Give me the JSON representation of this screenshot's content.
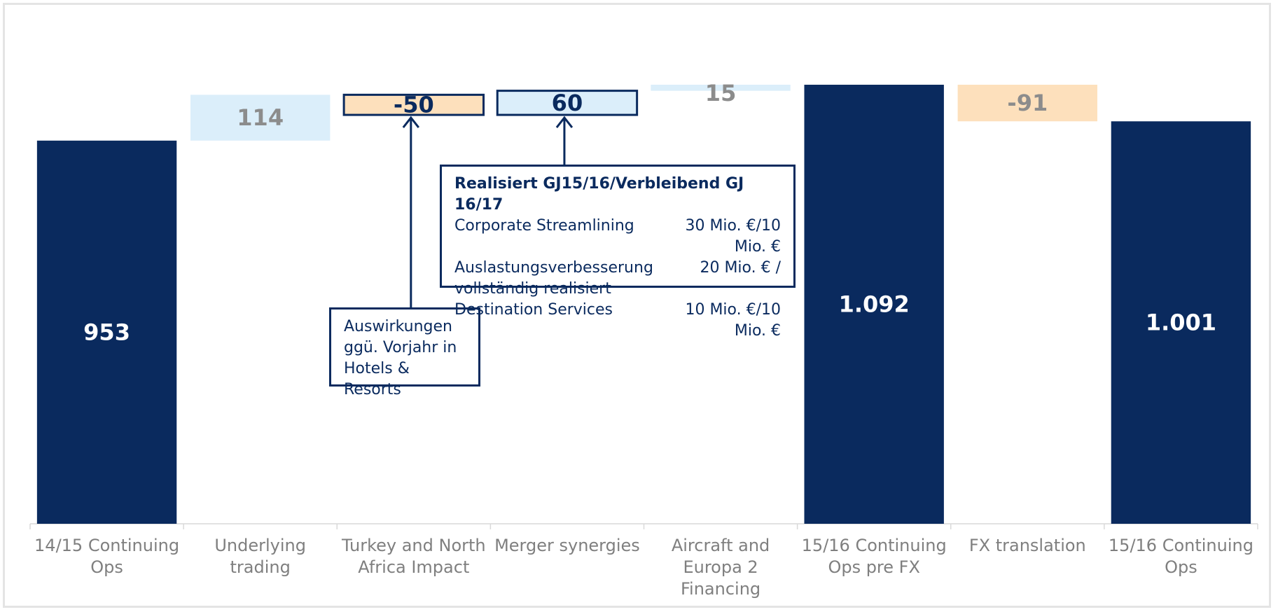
{
  "chart_data": {
    "type": "waterfall",
    "categories": [
      "14/15 Continuing Ops",
      "Underlying trading",
      "Turkey and North Africa Impact",
      "Merger synergies",
      "Aircraft and Europa 2 Financing",
      "15/16 Continuing Ops pre FX",
      "FX translation",
      "15/16 Continuing Ops"
    ],
    "values": [
      953,
      114,
      -50,
      60,
      15,
      1092,
      -91,
      1001
    ],
    "value_labels": [
      "953",
      "114",
      "-50",
      "60",
      "15",
      "1.092",
      "-91",
      "1.001"
    ],
    "measures": [
      "total",
      "relative",
      "relative",
      "relative",
      "relative",
      "total",
      "relative",
      "total"
    ],
    "colors": {
      "total": "#0a2a5e",
      "increase": "#dbeefa",
      "decrease": "#fde0bc"
    },
    "ylim": [
      0,
      1200
    ],
    "annotations": [
      {
        "target": 2,
        "lines": [
          "Auswirkungen",
          "ggü. Vorjahr in",
          "Hotels & Resorts"
        ]
      },
      {
        "target": 3,
        "title": "Realisiert GJ15/16/Verbleibend GJ 16/17",
        "rows": [
          [
            "Corporate Streamlining",
            "30 Mio. €/10 Mio. €"
          ],
          [
            "Auslastungsverbesserung",
            "20 Mio. € /"
          ],
          [
            "vollständig realisiert"
          ],
          [
            "Destination Services",
            "10 Mio. €/10 Mio. €"
          ]
        ]
      }
    ]
  }
}
